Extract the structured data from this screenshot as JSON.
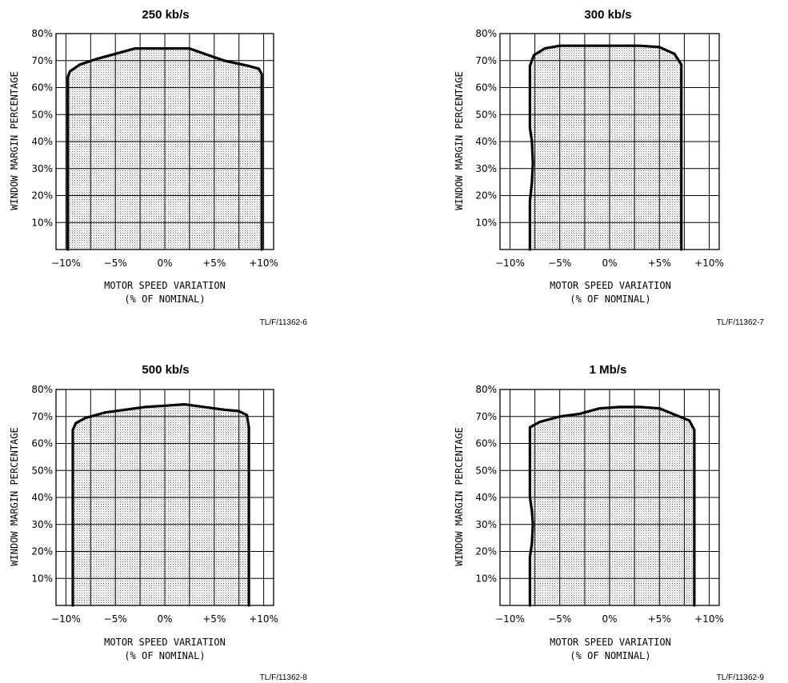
{
  "chart_data": [
    {
      "type": "area",
      "title": "250 kb/s",
      "xlabel": "MOTOR SPEED VARIATION",
      "xlabel2": "(% OF NOMINAL)",
      "ylabel": "WINDOW MARGIN PERCENTAGE",
      "xlim": [
        -11,
        11
      ],
      "ylim": [
        0,
        80
      ],
      "xticks": [
        -10,
        -5,
        0,
        5,
        10
      ],
      "xtick_labels": [
        "-10%",
        "-5%",
        "0%",
        "+5%",
        "+10%"
      ],
      "yticks": [
        10,
        20,
        30,
        40,
        50,
        60,
        70,
        80
      ],
      "ytick_labels": [
        "10%",
        "20%",
        "30%",
        "40%",
        "50%",
        "60%",
        "70%",
        "80%"
      ],
      "grid": true,
      "fill": "stippled gray",
      "ref_label": "TL/F/11362-6",
      "boundary": {
        "x": [
          -9.8,
          -9.8,
          -9.8,
          -9.6,
          -8.6,
          -7.0,
          -5.0,
          -3.0,
          -1.0,
          1.0,
          2.5,
          4.0,
          6.0,
          8.5,
          9.5,
          9.8,
          9.8
        ],
        "y": [
          0,
          30,
          64,
          66,
          68.5,
          70.5,
          72.5,
          74.5,
          74.5,
          74.5,
          74.5,
          72.5,
          70,
          68,
          67,
          65,
          0
        ]
      }
    },
    {
      "type": "area",
      "title": "300 kb/s",
      "xlabel": "MOTOR SPEED VARIATION",
      "xlabel2": "(% OF NOMINAL)",
      "ylabel": "WINDOW MARGIN PERCENTAGE",
      "xlim": [
        -11,
        11
      ],
      "ylim": [
        0,
        80
      ],
      "xticks": [
        -10,
        -5,
        0,
        5,
        10
      ],
      "xtick_labels": [
        "-10%",
        "-5%",
        "0%",
        "+5%",
        "+10%"
      ],
      "yticks": [
        10,
        20,
        30,
        40,
        50,
        60,
        70,
        80
      ],
      "ytick_labels": [
        "10%",
        "20%",
        "30%",
        "40%",
        "50%",
        "60%",
        "70%",
        "80%"
      ],
      "grid": true,
      "fill": "stippled gray",
      "ref_label": "TL/F/11362-7",
      "boundary": {
        "x": [
          -8.0,
          -8.0,
          -7.8,
          -7.7,
          -7.8,
          -8.0,
          -8.0,
          -7.6,
          -6.5,
          -5.0,
          -3.0,
          0.0,
          3.0,
          5.0,
          6.5,
          7.2,
          7.2
        ],
        "y": [
          0,
          18,
          25,
          32,
          40,
          45,
          68,
          72,
          74.5,
          75.5,
          75.5,
          75.5,
          75.5,
          75,
          72.5,
          68.5,
          0
        ]
      }
    },
    {
      "type": "area",
      "title": "500 kb/s",
      "xlabel": "MOTOR SPEED VARIATION",
      "xlabel2": "(% OF NOMINAL)",
      "ylabel": "WINDOW MARGIN PERCENTAGE",
      "xlim": [
        -11,
        11
      ],
      "ylim": [
        0,
        80
      ],
      "xticks": [
        -10,
        -5,
        0,
        5,
        10
      ],
      "xtick_labels": [
        "-10%",
        "-5%",
        "0%",
        "+5%",
        "+10%"
      ],
      "yticks": [
        10,
        20,
        30,
        40,
        50,
        60,
        70,
        80
      ],
      "ytick_labels": [
        "10%",
        "20%",
        "30%",
        "40%",
        "50%",
        "60%",
        "70%",
        "80%"
      ],
      "grid": true,
      "fill": "stippled gray",
      "ref_label": "TL/F/11362-8",
      "boundary": {
        "x": [
          -9.3,
          -9.3,
          -9.0,
          -8.0,
          -6.0,
          -4.0,
          -2.0,
          0.0,
          2.0,
          4.0,
          6.0,
          7.5,
          8.3,
          8.5,
          8.5
        ],
        "y": [
          0,
          65,
          67.5,
          69.5,
          71.5,
          72.5,
          73.5,
          74,
          74.5,
          73.5,
          72.5,
          72,
          70.5,
          66,
          0
        ]
      }
    },
    {
      "type": "area",
      "title": "1 Mb/s",
      "xlabel": "MOTOR SPEED VARIATION",
      "xlabel2": "(% OF NOMINAL)",
      "ylabel": "WINDOW MARGIN PERCENTAGE",
      "xlim": [
        -11,
        11
      ],
      "ylim": [
        0,
        80
      ],
      "xticks": [
        -10,
        -5,
        0,
        5,
        10
      ],
      "xtick_labels": [
        "-10%",
        "-5%",
        "0%",
        "+5%",
        "+10%"
      ],
      "yticks": [
        10,
        20,
        30,
        40,
        50,
        60,
        70,
        80
      ],
      "ytick_labels": [
        "10%",
        "20%",
        "30%",
        "40%",
        "50%",
        "60%",
        "70%",
        "80%"
      ],
      "grid": true,
      "fill": "stippled gray",
      "ref_label": "TL/F/11362-9",
      "boundary": {
        "x": [
          -8.0,
          -8.0,
          -7.8,
          -7.7,
          -7.8,
          -8.0,
          -8.0,
          -7.0,
          -5.0,
          -3.0,
          -1.0,
          1.0,
          3.0,
          5.0,
          7.0,
          8.0,
          8.5,
          8.5
        ],
        "y": [
          0,
          18,
          23,
          30,
          35,
          40,
          66,
          68,
          70,
          71,
          73,
          73.5,
          73.5,
          73,
          70,
          68.5,
          65,
          0
        ]
      }
    }
  ]
}
